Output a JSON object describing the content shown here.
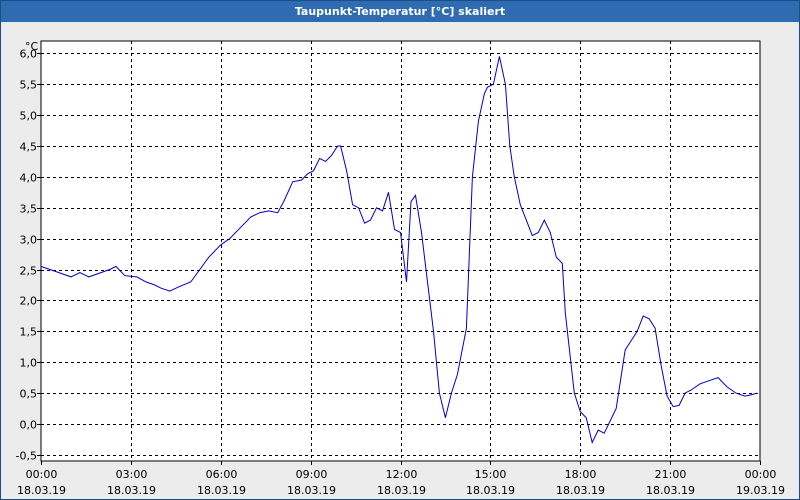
{
  "window": {
    "title": "Taupunkt-Temperatur [°C] skaliert"
  },
  "colors": {
    "title_bg": "#2e6bb0",
    "line": "#0000cc",
    "grid": "#000000",
    "plot_bg": "#ffffff"
  },
  "chart_data": {
    "type": "line",
    "title": "Taupunkt-Temperatur [°C] skaliert",
    "ylabel": "°C",
    "xlabel": "",
    "ylim": [
      -0.6,
      6.2
    ],
    "xlim": [
      0,
      24
    ],
    "grid": true,
    "y_ticks": [
      "6,0",
      "5,5",
      "5,0",
      "4,5",
      "4,0",
      "3,5",
      "3,0",
      "2,5",
      "2,0",
      "1,5",
      "1,0",
      "0,5",
      "0,0",
      "-0,5"
    ],
    "y_tick_values": [
      6.0,
      5.5,
      5.0,
      4.5,
      4.0,
      3.5,
      3.0,
      2.5,
      2.0,
      1.5,
      1.0,
      0.5,
      0.0,
      -0.5
    ],
    "x_ticks": [
      {
        "time": "00:00",
        "date": "18.03.19"
      },
      {
        "time": "03:00",
        "date": "18.03.19"
      },
      {
        "time": "06:00",
        "date": "18.03.19"
      },
      {
        "time": "09:00",
        "date": "18.03.19"
      },
      {
        "time": "12:00",
        "date": "18.03.19"
      },
      {
        "time": "15:00",
        "date": "18.03.19"
      },
      {
        "time": "18:00",
        "date": "18.03.19"
      },
      {
        "time": "21:00",
        "date": "18.03.19"
      },
      {
        "time": "00:00",
        "date": "19.03.19"
      }
    ],
    "x_tick_values": [
      0,
      3,
      6,
      9,
      12,
      15,
      18,
      21,
      24
    ],
    "series": [
      {
        "x": [
          0,
          0.3,
          0.6,
          1.0,
          1.3,
          1.6,
          2.0,
          2.3,
          2.5,
          2.8,
          3.2,
          3.5,
          3.8,
          4.0,
          4.3,
          4.6,
          5.0,
          5.3,
          5.6,
          6.0,
          6.3,
          6.7,
          7.0,
          7.3,
          7.6,
          7.9,
          8.1,
          8.4,
          8.7,
          8.9,
          9.1,
          9.3,
          9.5,
          9.7,
          9.9,
          10.0,
          10.2,
          10.4,
          10.6,
          10.8,
          11.0,
          11.2,
          11.4,
          11.6,
          11.8,
          12.0,
          12.2,
          12.35,
          12.5,
          12.7,
          12.9,
          13.1,
          13.3,
          13.5,
          13.7,
          13.9,
          14.0,
          14.2,
          14.4,
          14.6,
          14.8,
          14.9,
          15.1,
          15.3,
          15.5,
          15.65,
          15.8,
          16.0,
          16.2,
          16.4,
          16.6,
          16.8,
          17.0,
          17.2,
          17.4,
          17.5,
          17.8,
          18.0,
          18.2,
          18.4,
          18.6,
          18.8,
          19.0,
          19.2,
          19.5,
          19.7,
          19.9,
          20.1,
          20.3,
          20.5,
          20.7,
          20.9,
          21.1,
          21.3,
          21.5,
          21.7,
          22.0,
          22.3,
          22.6,
          22.9,
          23.2,
          23.5,
          23.7,
          23.9
        ],
        "y": [
          2.55,
          2.5,
          2.45,
          2.38,
          2.45,
          2.38,
          2.45,
          2.5,
          2.55,
          2.4,
          2.38,
          2.3,
          2.25,
          2.2,
          2.15,
          2.22,
          2.3,
          2.5,
          2.7,
          2.9,
          3.0,
          3.2,
          3.35,
          3.42,
          3.45,
          3.42,
          3.6,
          3.92,
          3.95,
          4.05,
          4.1,
          4.3,
          4.25,
          4.35,
          4.5,
          4.5,
          4.1,
          3.55,
          3.5,
          3.25,
          3.3,
          3.5,
          3.45,
          3.75,
          3.15,
          3.1,
          2.3,
          3.6,
          3.7,
          3.1,
          2.3,
          1.5,
          0.5,
          0.1,
          0.5,
          0.8,
          1.05,
          1.55,
          4.0,
          4.9,
          5.35,
          5.45,
          5.5,
          5.95,
          5.5,
          4.5,
          4.0,
          3.55,
          3.3,
          3.05,
          3.1,
          3.3,
          3.1,
          2.7,
          2.6,
          1.8,
          0.5,
          0.2,
          0.1,
          -0.3,
          -0.1,
          -0.15,
          0.05,
          0.25,
          1.2,
          1.35,
          1.5,
          1.75,
          1.7,
          1.55,
          0.95,
          0.45,
          0.28,
          0.3,
          0.5,
          0.55,
          0.65,
          0.7,
          0.75,
          0.6,
          0.5,
          0.45,
          0.47,
          0.5
        ]
      }
    ]
  }
}
